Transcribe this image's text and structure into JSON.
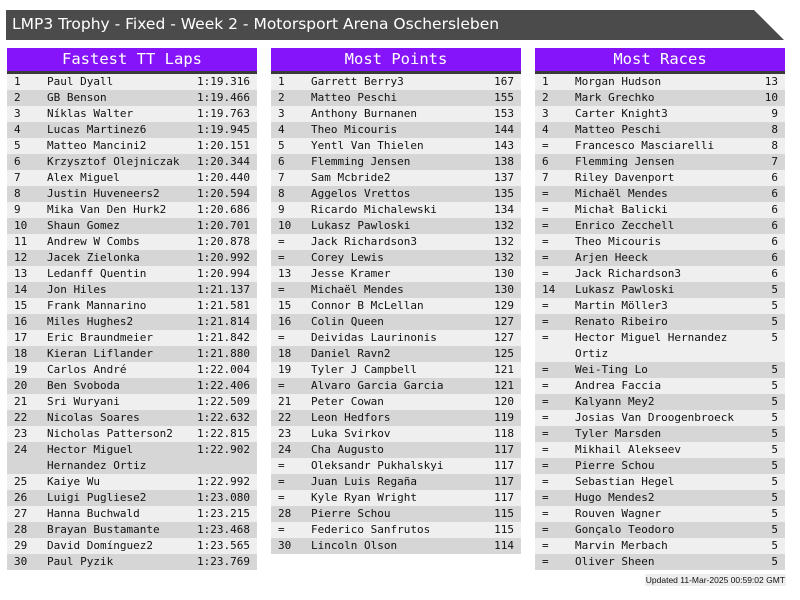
{
  "title": "LMP3 Trophy - Fixed - Week 2 - Motorsport Arena Oschersleben",
  "colors": {
    "header_bg": "#8514fb",
    "title_bg": "#4b4b4b",
    "row_odd": "#efefef",
    "row_even": "#d6d6d6"
  },
  "tables": [
    {
      "heading": "Fastest TT Laps",
      "rows": [
        [
          "1",
          "Paul Dyall",
          "1:19.316"
        ],
        [
          "2",
          "GB Benson",
          "1:19.466"
        ],
        [
          "3",
          "Níklas Walter",
          "1:19.763"
        ],
        [
          "4",
          "Lucas Martinez6",
          "1:19.945"
        ],
        [
          "5",
          "Matteo Mancini2",
          "1:20.151"
        ],
        [
          "6",
          "Krzysztof Olejniczak",
          "1:20.344"
        ],
        [
          "7",
          "Alex Miguel",
          "1:20.440"
        ],
        [
          "8",
          "Justin Huveneers2",
          "1:20.594"
        ],
        [
          "9",
          "Mika Van Den Hurk2",
          "1:20.686"
        ],
        [
          "10",
          "Shaun Gomez",
          "1:20.701"
        ],
        [
          "11",
          "Andrew W Combs",
          "1:20.878"
        ],
        [
          "12",
          "Jacek Zielonka",
          "1:20.992"
        ],
        [
          "13",
          "Ledanff Quentin",
          "1:20.994"
        ],
        [
          "14",
          "Jon Hiles",
          "1:21.137"
        ],
        [
          "15",
          "Frank Mannarino",
          "1:21.581"
        ],
        [
          "16",
          "Miles Hughes2",
          "1:21.814"
        ],
        [
          "17",
          "Eric Braundmeier",
          "1:21.842"
        ],
        [
          "18",
          "Kieran Liflander",
          "1:21.880"
        ],
        [
          "19",
          "Carlos André",
          "1:22.004"
        ],
        [
          "20",
          "Ben Svoboda",
          "1:22.406"
        ],
        [
          "21",
          "Sri Wuryani",
          "1:22.509"
        ],
        [
          "22",
          "Nicolas Soares",
          "1:22.632"
        ],
        [
          "23",
          "Nicholas Patterson2",
          "1:22.815"
        ],
        [
          "24",
          "Hector Miguel Hernandez Ortiz",
          "1:22.902"
        ],
        [
          "25",
          "Kaiye Wu",
          "1:22.992"
        ],
        [
          "26",
          "Luigi Pugliese2",
          "1:23.080"
        ],
        [
          "27",
          "Hanna Buchwald",
          "1:23.215"
        ],
        [
          "28",
          "Brayan Bustamante",
          "1:23.468"
        ],
        [
          "29",
          "David Domínguez2",
          "1:23.565"
        ],
        [
          "30",
          "Paul Pyzik",
          "1:23.769"
        ]
      ]
    },
    {
      "heading": "Most Points",
      "rows": [
        [
          "1",
          "Garrett Berry3",
          "167"
        ],
        [
          "2",
          "Matteo Peschi",
          "155"
        ],
        [
          "3",
          "Anthony Burnanen",
          "153"
        ],
        [
          "4",
          "Theo Micouris",
          "144"
        ],
        [
          "5",
          "Yentl Van Thielen",
          "143"
        ],
        [
          "6",
          "Flemming Jensen",
          "138"
        ],
        [
          "7",
          "Sam Mcbride2",
          "137"
        ],
        [
          "8",
          "Aggelos Vrettos",
          "135"
        ],
        [
          "9",
          "Ricardo Michalewski",
          "134"
        ],
        [
          "10",
          "Lukasz Pawloski",
          "132"
        ],
        [
          "=",
          "Jack Richardson3",
          "132"
        ],
        [
          "=",
          "Corey Lewis",
          "132"
        ],
        [
          "13",
          "Jesse Kramer",
          "130"
        ],
        [
          "=",
          "Michaël Mendes",
          "130"
        ],
        [
          "15",
          "Connor B McLellan",
          "129"
        ],
        [
          "16",
          "Colin Queen",
          "127"
        ],
        [
          "=",
          "Deividas Laurinonis",
          "127"
        ],
        [
          "18",
          "Daniel Ravn2",
          "125"
        ],
        [
          "19",
          "Tyler J Campbell",
          "121"
        ],
        [
          "=",
          "Alvaro Garcia Garcia",
          "121"
        ],
        [
          "21",
          "Peter Cowan",
          "120"
        ],
        [
          "22",
          "Leon Hedfors",
          "119"
        ],
        [
          "23",
          "Luka Svirkov",
          "118"
        ],
        [
          "24",
          "Cha Augusto",
          "117"
        ],
        [
          "=",
          "Oleksandr Pukhalskyi",
          "117"
        ],
        [
          "=",
          "Juan Luis Regaña",
          "117"
        ],
        [
          "=",
          "Kyle Ryan Wright",
          "117"
        ],
        [
          "28",
          "Pierre Schou",
          "115"
        ],
        [
          "=",
          "Federico Sanfrutos",
          "115"
        ],
        [
          "30",
          "Lincoln Olson",
          "114"
        ]
      ]
    },
    {
      "heading": "Most Races",
      "rows": [
        [
          "1",
          "Morgan Hudson",
          "13"
        ],
        [
          "2",
          "Mark Grechko",
          "10"
        ],
        [
          "3",
          "Carter Knight3",
          "9"
        ],
        [
          "4",
          "Matteo Peschi",
          "8"
        ],
        [
          "=",
          "Francesco Masciarelli",
          "8"
        ],
        [
          "6",
          "Flemming Jensen",
          "7"
        ],
        [
          "7",
          "Riley Davenport",
          "6"
        ],
        [
          "=",
          "Michaël Mendes",
          "6"
        ],
        [
          "=",
          "Michał Balicki",
          "6"
        ],
        [
          "=",
          "Enrico Zecchell",
          "6"
        ],
        [
          "=",
          "Theo Micouris",
          "6"
        ],
        [
          "=",
          "Arjen Heeck",
          "6"
        ],
        [
          "=",
          "Jack Richardson3",
          "6"
        ],
        [
          "14",
          "Lukasz Pawloski",
          "5"
        ],
        [
          "=",
          "Martin Möller3",
          "5"
        ],
        [
          "=",
          "Renato Ribeiro",
          "5"
        ],
        [
          "=",
          "Hector Miguel Hernandez Ortiz",
          "5"
        ],
        [
          "=",
          "Wei-Ting Lo",
          "5"
        ],
        [
          "=",
          "Andrea Faccia",
          "5"
        ],
        [
          "=",
          "Kalyann Mey2",
          "5"
        ],
        [
          "=",
          "Josias Van Droogenbroeck",
          "5"
        ],
        [
          "=",
          "Tyler Marsden",
          "5"
        ],
        [
          "=",
          "Mikhail Alekseev",
          "5"
        ],
        [
          "=",
          "Pierre Schou",
          "5"
        ],
        [
          "=",
          "Sebastian Hegel",
          "5"
        ],
        [
          "=",
          "Hugo Mendes2",
          "5"
        ],
        [
          "=",
          "Rouven Wagner",
          "5"
        ],
        [
          "=",
          "Gonçalo Teodoro",
          "5"
        ],
        [
          "=",
          "Marvin Merbach",
          "5"
        ],
        [
          "=",
          "Oliver Sheen",
          "5"
        ]
      ]
    }
  ],
  "footer": "Updated 11-Mar-2025 00:59:02 GMT"
}
